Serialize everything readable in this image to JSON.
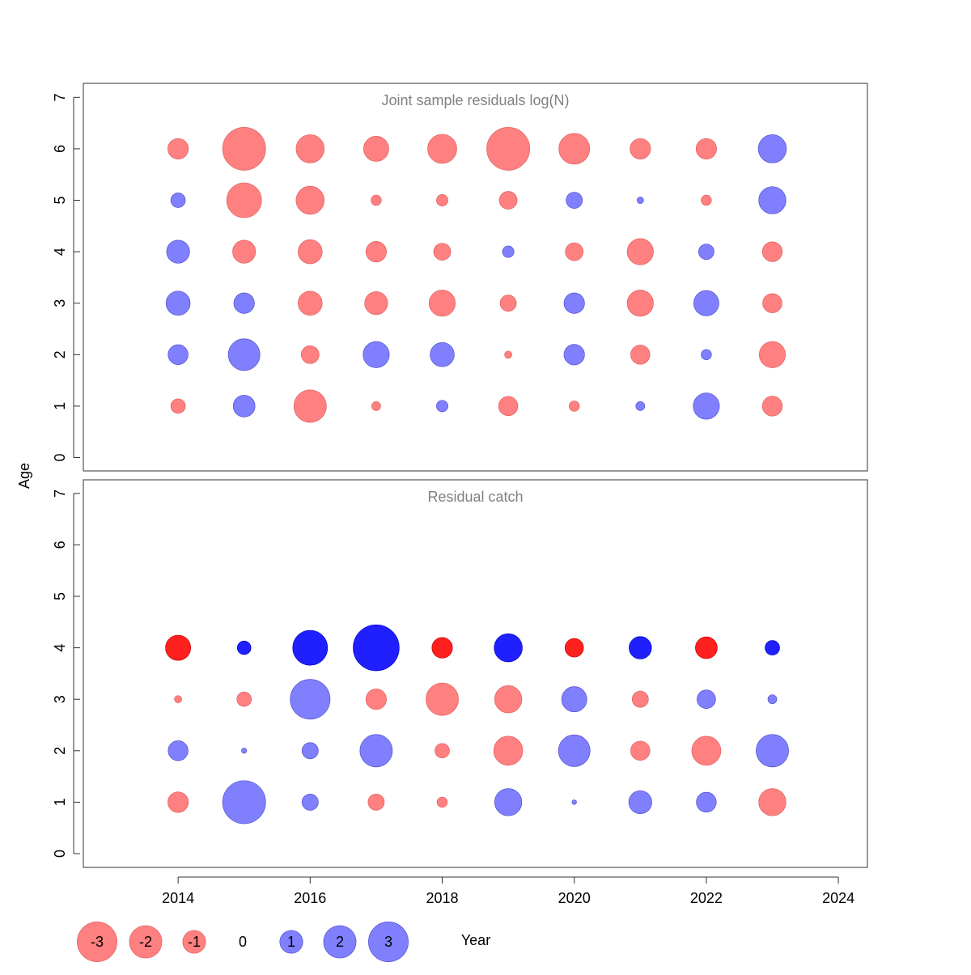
{
  "chart_data": [
    {
      "type": "scatter",
      "title": "Joint sample residuals log(N)",
      "ylabel": "Age",
      "ylim": [
        0,
        7
      ],
      "xlim": [
        2013,
        2024.5
      ],
      "yticks": [
        "0",
        "1",
        "2",
        "3",
        "4",
        "5",
        "6",
        "7"
      ],
      "years": [
        2014,
        2015,
        2016,
        2017,
        2018,
        2019,
        2020,
        2021,
        2022,
        2023
      ],
      "ages": [
        1,
        2,
        3,
        4,
        5,
        6
      ],
      "residuals": {
        "1": [
          -0.4,
          0.9,
          -2.0,
          -0.15,
          0.25,
          -0.7,
          -0.2,
          0.15,
          1.3,
          -0.75
        ],
        "2": [
          0.75,
          1.9,
          -0.6,
          1.3,
          1.1,
          -0.1,
          0.8,
          -0.7,
          0.2,
          -1.3
        ],
        "3": [
          1.1,
          0.8,
          -1.1,
          -1.0,
          -1.3,
          -0.5,
          0.8,
          -1.3,
          1.2,
          -0.7
        ],
        "4": [
          1.0,
          -1.0,
          -1.1,
          -0.8,
          -0.55,
          0.25,
          -0.6,
          -1.3,
          0.45,
          -0.75
        ],
        "5": [
          0.4,
          -2.3,
          -1.5,
          -0.2,
          -0.25,
          -0.6,
          0.5,
          0.08,
          -0.2,
          1.4
        ],
        "6": [
          -0.8,
          -3.5,
          -1.5,
          -1.2,
          -1.6,
          -3.5,
          -1.8,
          -0.8,
          -0.8,
          1.5
        ]
      },
      "emphasized_ages": []
    },
    {
      "type": "scatter",
      "title": "Residual catch",
      "xlabel": "Year",
      "ylabel": "Age",
      "ylim": [
        0,
        7
      ],
      "xlim": [
        2013,
        2024.5
      ],
      "yticks": [
        "0",
        "1",
        "2",
        "3",
        "4",
        "5",
        "6",
        "7"
      ],
      "xticks": [
        "2014",
        "2016",
        "2018",
        "2020",
        "2022",
        "2024"
      ],
      "years": [
        2014,
        2015,
        2016,
        2017,
        2018,
        2019,
        2020,
        2021,
        2022,
        2023
      ],
      "ages": [
        1,
        2,
        3,
        4
      ],
      "residuals": {
        "1": [
          -0.8,
          3.5,
          0.5,
          -0.5,
          -0.2,
          1.4,
          0.04,
          1.0,
          0.75,
          -1.4
        ],
        "2": [
          0.75,
          0.05,
          0.5,
          2.0,
          -0.4,
          -1.6,
          1.9,
          -0.7,
          -1.6,
          2.0
        ],
        "3": [
          -0.1,
          -0.4,
          3.0,
          -0.8,
          -2.0,
          -1.4,
          1.2,
          -0.5,
          0.65,
          0.15
        ],
        "4": [
          -1.2,
          0.35,
          2.3,
          4.0,
          -0.8,
          1.5,
          -0.65,
          0.95,
          -0.9,
          0.4
        ]
      },
      "emphasized_ages": [
        4
      ]
    }
  ],
  "legend": {
    "values": [
      -3,
      -2,
      -1,
      0,
      1,
      2,
      3
    ],
    "labels": [
      "-3",
      "-2",
      "-1",
      "0",
      "1",
      "2",
      "3"
    ]
  },
  "colors": {
    "negative": "#ff8080",
    "negative_emphasized": "#ff2020",
    "positive": "#8080ff",
    "positive_emphasized": "#2020ff",
    "title": "#808080"
  }
}
